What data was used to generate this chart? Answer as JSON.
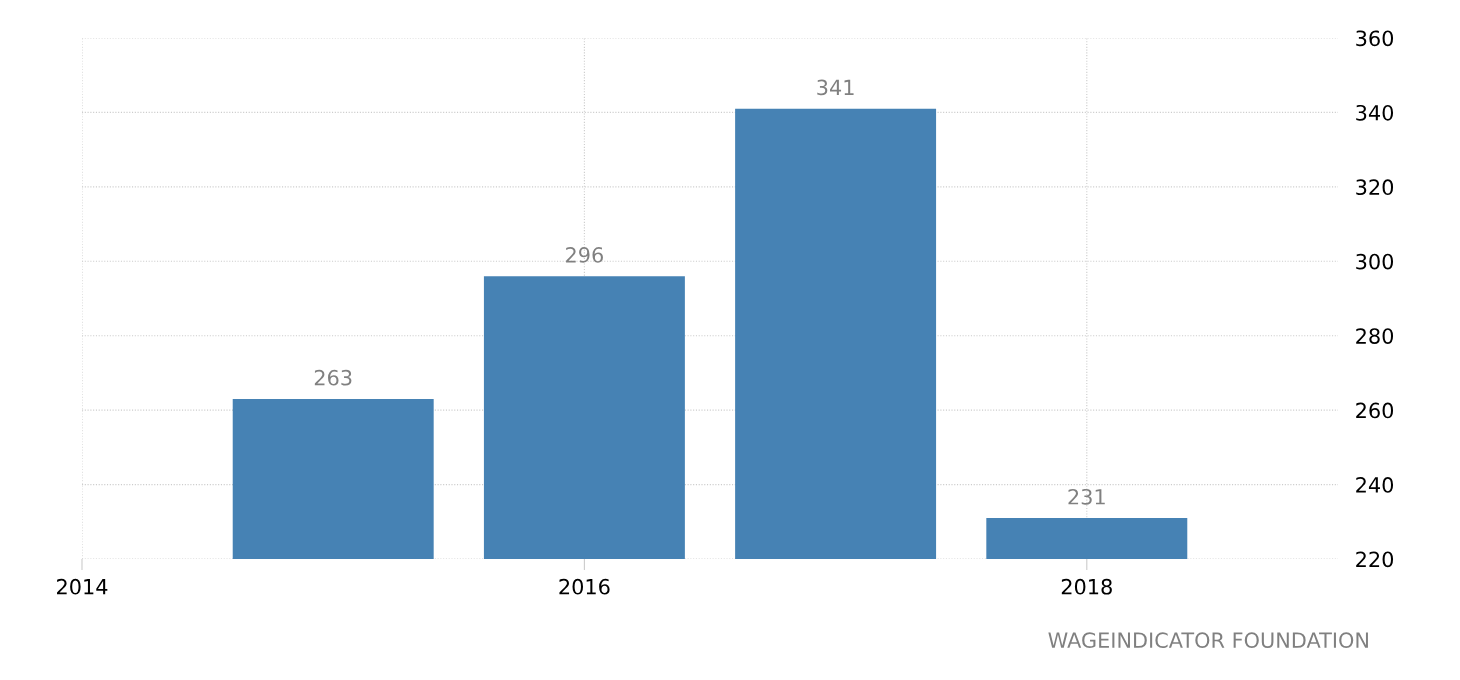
{
  "chart_data": {
    "type": "bar",
    "x": [
      2015,
      2016,
      2017,
      2018
    ],
    "values": [
      263,
      296,
      341,
      231
    ],
    "color": "#4682b4",
    "xlim": [
      2014,
      2019
    ],
    "xticks": [
      2014,
      2016,
      2018
    ],
    "ylim": [
      220,
      360
    ],
    "yticks": [
      220,
      240,
      260,
      280,
      300,
      320,
      340,
      360
    ],
    "grid": true,
    "data_labels": true,
    "annotations": [
      "WAGEINDICATOR FOUNDATION"
    ]
  }
}
